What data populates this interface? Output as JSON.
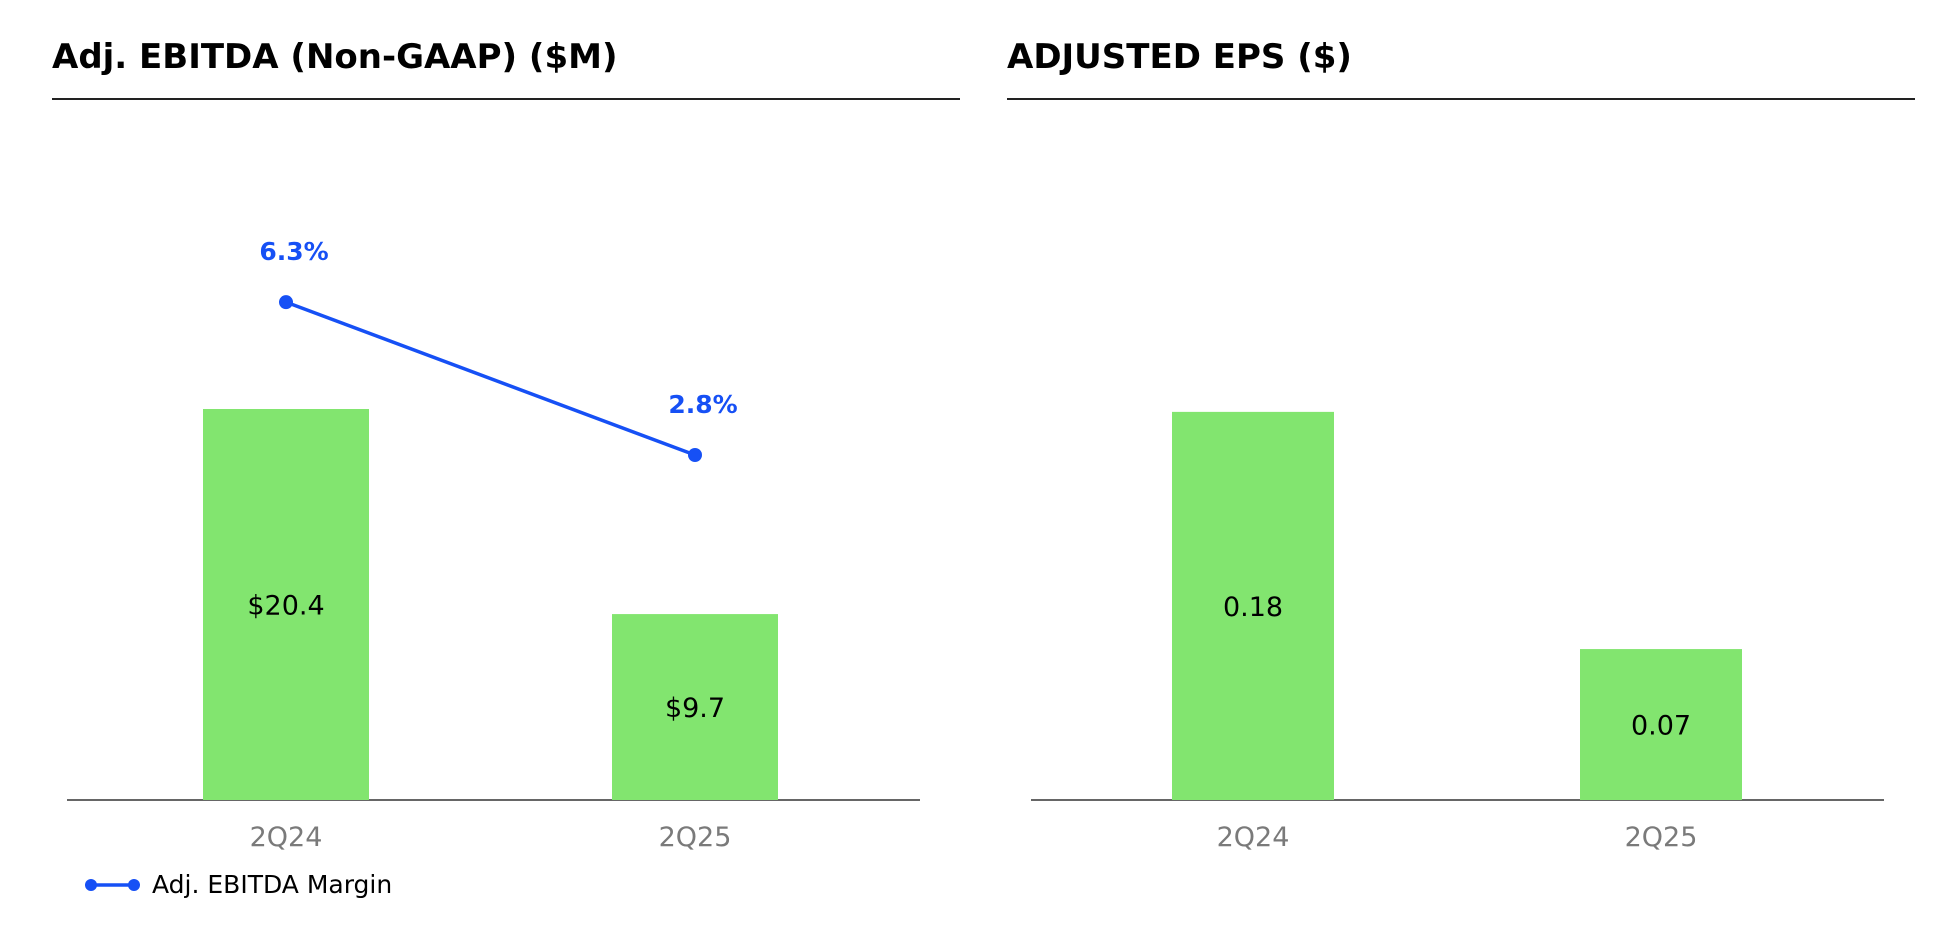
{
  "colors": {
    "bar": "#82e56f",
    "line": "#1650f5",
    "axis": "#333333",
    "tick": "#7a7a7a"
  },
  "chart_data": [
    {
      "type": "bar",
      "title": "Adj. EBITDA (Non-GAAP) ($M)",
      "categories": [
        "2Q24",
        "2Q25"
      ],
      "values": [
        20.4,
        9.7
      ],
      "value_labels": [
        "$20.4",
        "$9.7"
      ],
      "ylim": [
        0,
        36
      ],
      "line_series": {
        "name": "Adj. EBITDA Margin",
        "values": [
          6.3,
          2.8
        ],
        "value_labels": [
          "6.3%",
          "2.8%"
        ],
        "ylim": [
          -5.1,
          10.7
        ]
      },
      "legend": "bottom-left",
      "grid": false
    },
    {
      "type": "bar",
      "title": "ADJUSTED EPS ($)",
      "categories": [
        "2Q24",
        "2Q25"
      ],
      "values": [
        0.18,
        0.07
      ],
      "value_labels": [
        "0.18",
        "0.07"
      ],
      "ylim": [
        0,
        0.32
      ],
      "grid": false
    }
  ]
}
